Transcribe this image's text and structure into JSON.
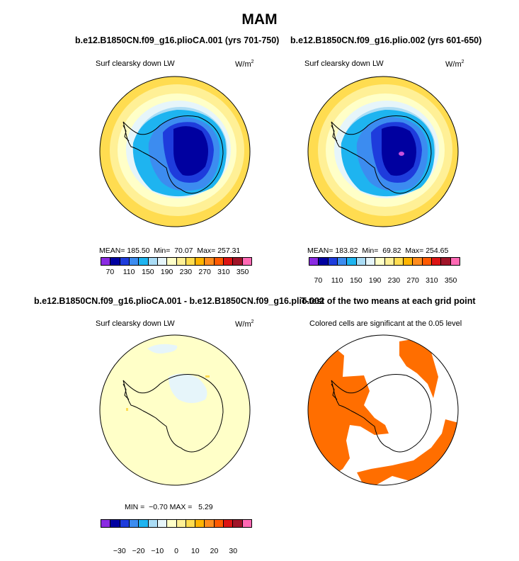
{
  "title": "MAM",
  "panels": {
    "top_left": {
      "title": "b.e12.B1850CN.f09_g16.plioCA.001 (yrs 701-750)",
      "left_label": "Surf clearsky down LW",
      "units": "W/m",
      "units_sup": "2",
      "stats": "MEAN= 185.50  Min=  70.07  Max= 257.31",
      "ticks": [
        "70",
        "110",
        "150",
        "190",
        "230",
        "270",
        "310",
        "350"
      ]
    },
    "top_right": {
      "title": "b.e12.B1850CN.f09_g16.plio.002 (yrs 601-650)",
      "left_label": "Surf clearsky down LW",
      "units": "W/m",
      "units_sup": "2",
      "stats": "MEAN= 183.82  Min=  69.82  Max= 254.65",
      "ticks": [
        "70",
        "110",
        "150",
        "190",
        "230",
        "270",
        "310",
        "350"
      ]
    },
    "bottom_left": {
      "title": "b.e12.B1850CN.f09_g16.plioCA.001 - b.e12.B1850CN.f09_g16.plio.002",
      "left_label": "Surf clearsky down LW",
      "units": "W/m",
      "units_sup": "2",
      "stats": "MIN =  −0.70 MAX =   5.29",
      "ticks": [
        "−30",
        "−20",
        "−10",
        "0",
        "10",
        "20",
        "30"
      ]
    },
    "bottom_right": {
      "title": "T-test of the two means at each grid point",
      "label": "Colored cells are significant at the 0.05 level"
    }
  },
  "colors": {
    "abs_scale": [
      "#8a2be2",
      "#0000a0",
      "#1e3cdc",
      "#3c8cf0",
      "#1eb4f0",
      "#aadcf5",
      "#e6f5fa",
      "#ffffc8",
      "#fff096",
      "#ffdc50",
      "#ffb400",
      "#ff8c1e",
      "#ff5a00",
      "#dc1414",
      "#a01428",
      "#ff69b4"
    ],
    "diff_scale": [
      "#8a2be2",
      "#0000a0",
      "#1e3cdc",
      "#3c8cf0",
      "#1eb4f0",
      "#aadcf5",
      "#e6f5fa",
      "#ffffc8",
      "#fff096",
      "#ffdc50",
      "#ffb400",
      "#ff8c1e",
      "#ff5a00",
      "#dc1414",
      "#a01428",
      "#ff69b4"
    ],
    "significant": "#ff6e00"
  }
}
